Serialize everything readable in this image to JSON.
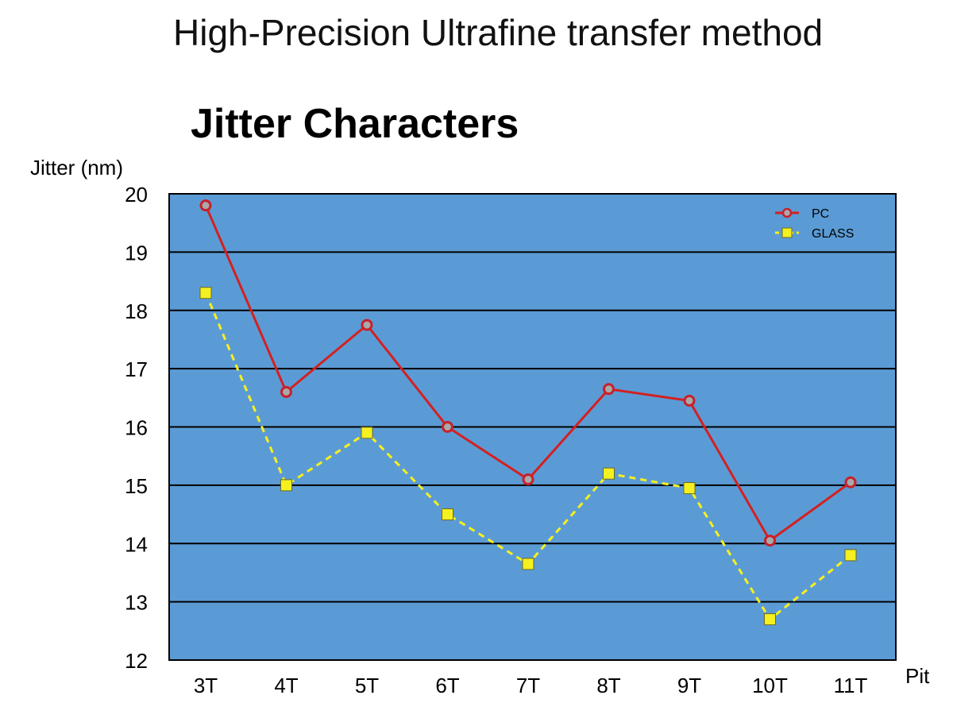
{
  "header": {
    "title": "High-Precision Ultrafine transfer method"
  },
  "chart_data": {
    "type": "line",
    "title": "Jitter Characters",
    "xlabel": "Pit",
    "ylabel": "Jitter (nm)",
    "categories": [
      "3T",
      "4T",
      "5T",
      "6T",
      "7T",
      "8T",
      "9T",
      "10T",
      "11T"
    ],
    "ylim": [
      12,
      20
    ],
    "yticks": [
      "12",
      "13",
      "14",
      "15",
      "16",
      "17",
      "18",
      "19",
      "20"
    ],
    "grid": true,
    "legend_position": "top-right",
    "series": [
      {
        "name": "PC",
        "values": [
          19.8,
          16.6,
          17.75,
          16.0,
          15.1,
          16.65,
          16.45,
          14.05,
          15.05
        ],
        "color": "#d42020",
        "marker": "circle",
        "line_style": "solid"
      },
      {
        "name": "GLASS",
        "values": [
          18.3,
          15.0,
          15.9,
          14.5,
          13.65,
          15.2,
          14.95,
          12.7,
          13.8
        ],
        "color": "#f5f020",
        "marker": "square",
        "line_style": "dashed"
      }
    ],
    "plot_background": "#5b9bd5"
  }
}
